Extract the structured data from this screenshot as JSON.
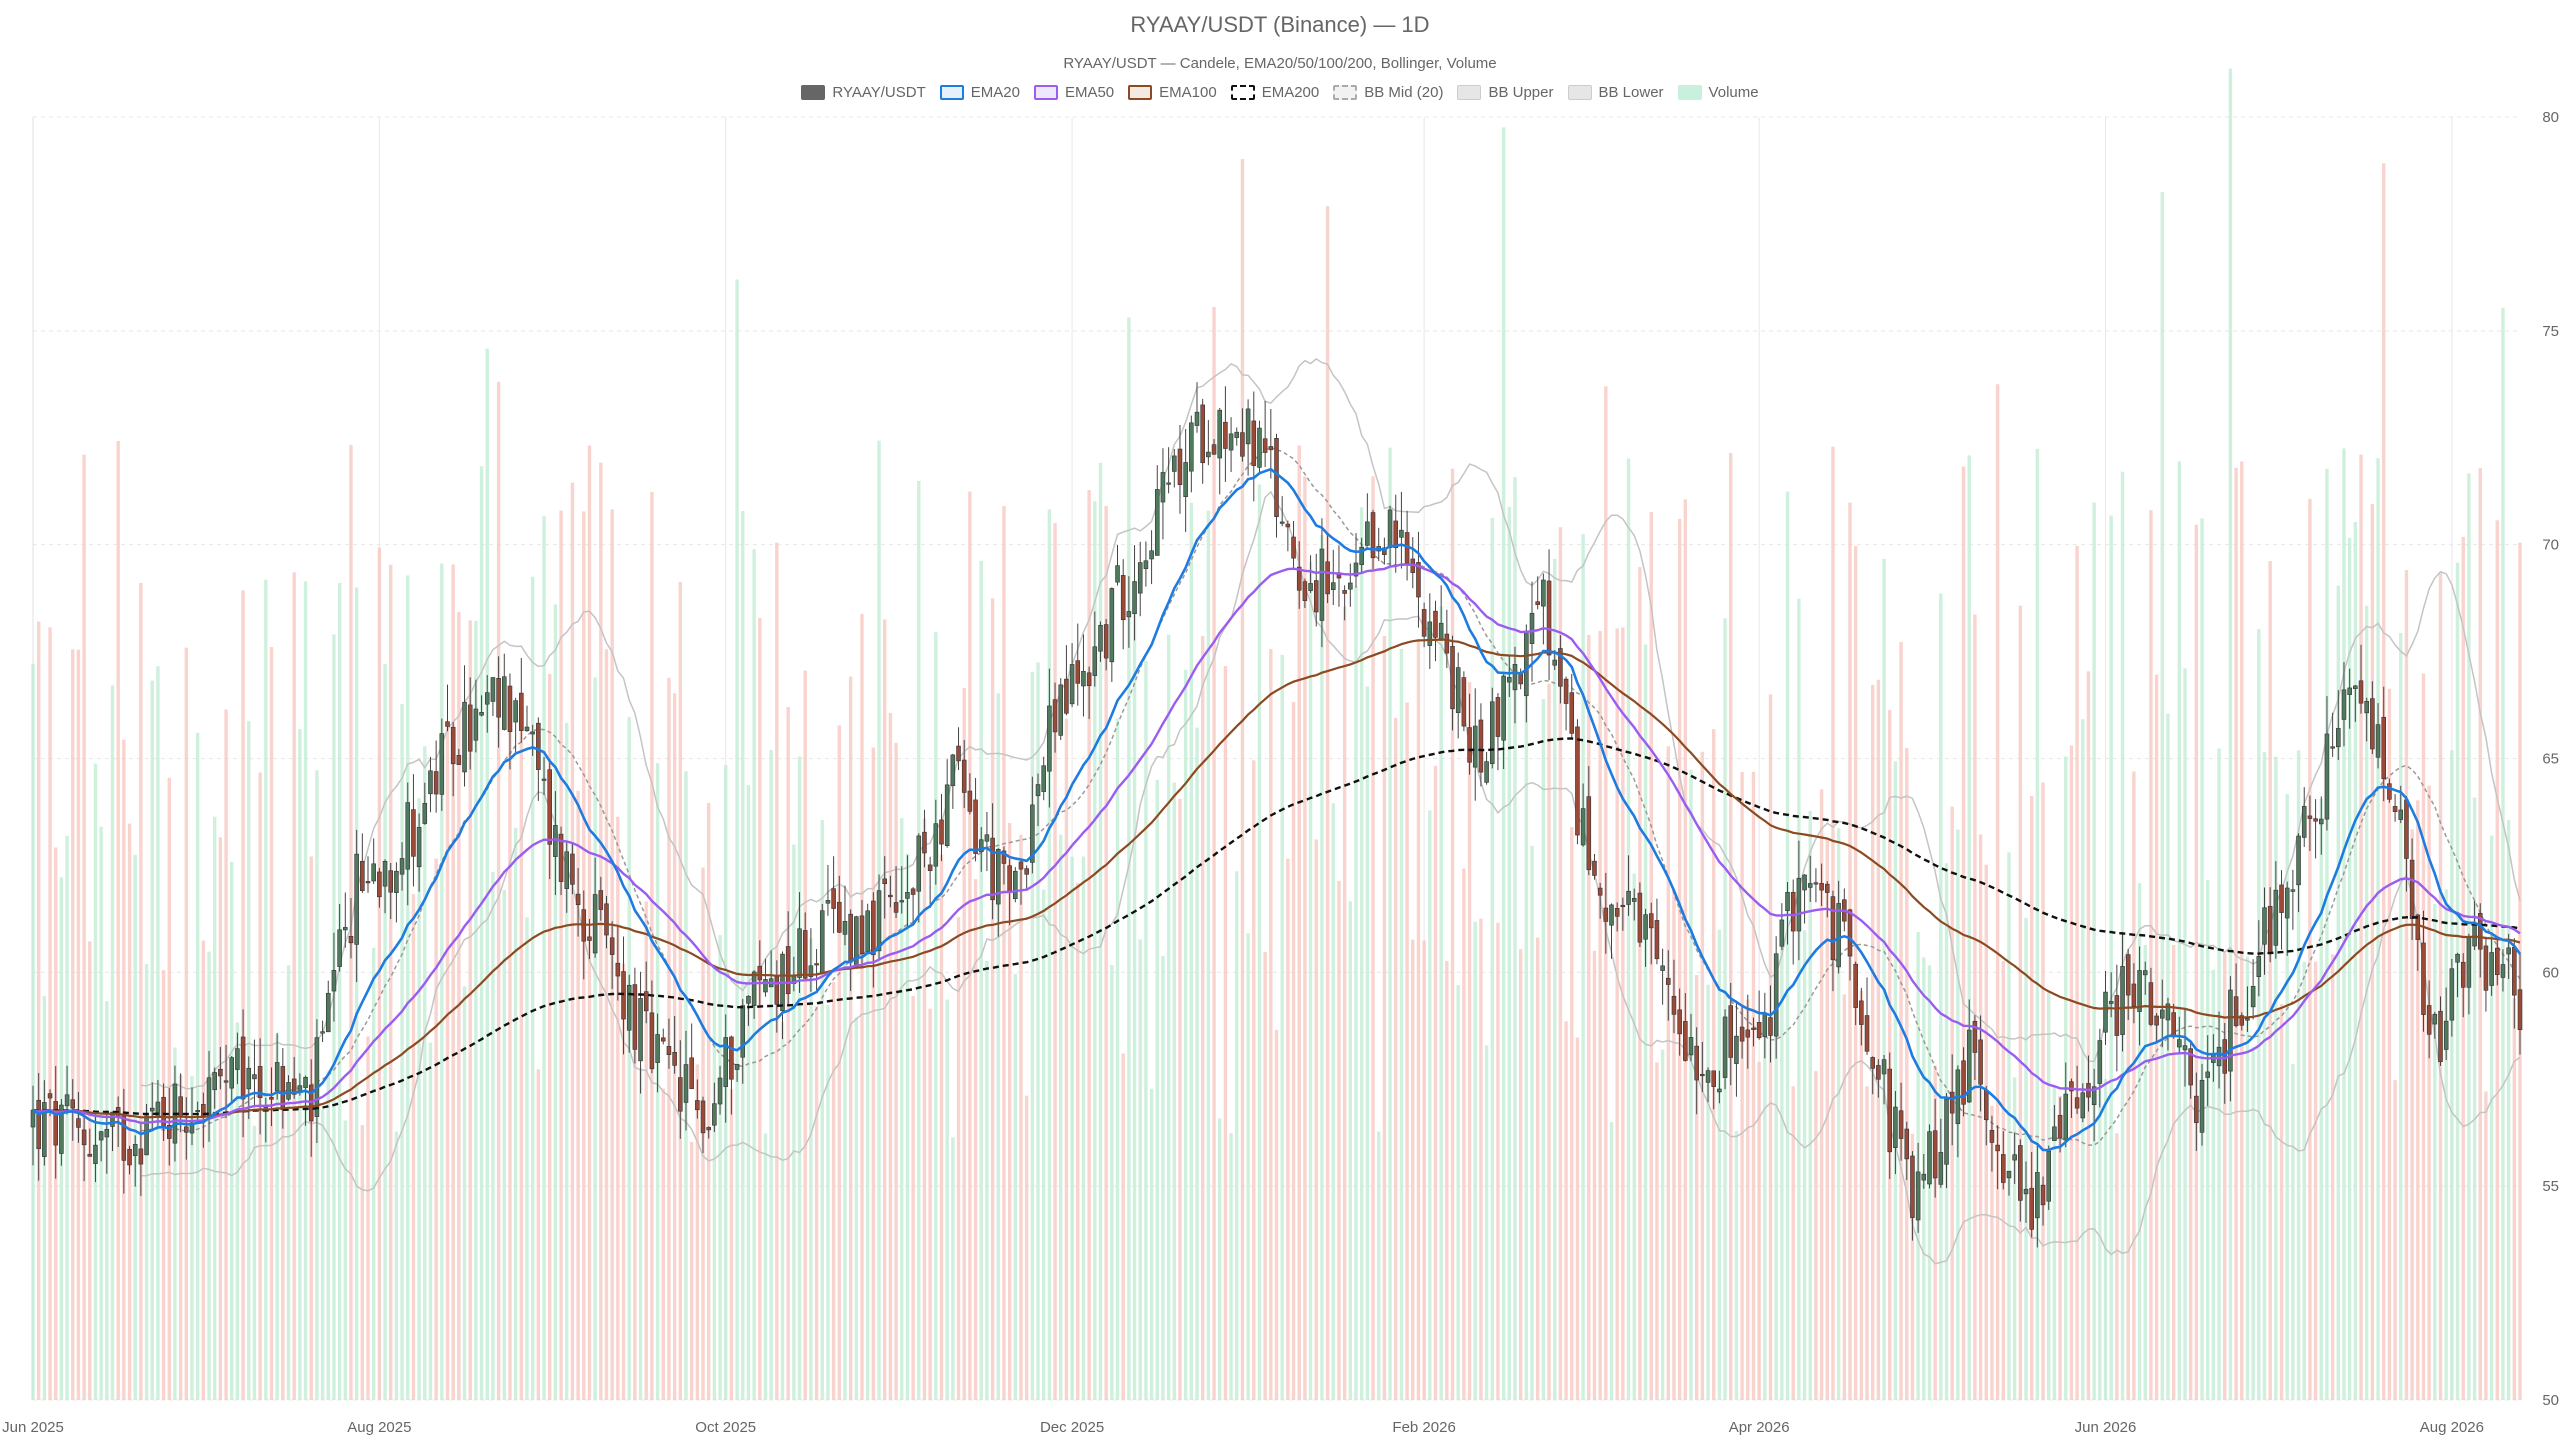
{
  "title": "RYAAY/USDT (Binance) — 1D",
  "subtitle": "RYAAY/USDT — Candele, EMA20/50/100/200, Bollinger, Volume",
  "legend": [
    {
      "label": "RYAAY/USDT",
      "kind": "solid",
      "fill": "#666666",
      "stroke": "#666666"
    },
    {
      "label": "EMA20",
      "kind": "line",
      "fill": "#e6f0fb",
      "stroke": "#1e7be0"
    },
    {
      "label": "EMA50",
      "kind": "line",
      "fill": "#efe7fc",
      "stroke": "#9b5cf0"
    },
    {
      "label": "EMA100",
      "kind": "line",
      "fill": "#f3e9e1",
      "stroke": "#8b4a22"
    },
    {
      "label": "EMA200",
      "kind": "dashed",
      "fill": "#ffffff",
      "stroke": "#111111"
    },
    {
      "label": "BB Mid (20)",
      "kind": "dashed",
      "fill": "#f2f2f2",
      "stroke": "#aaaaaa"
    },
    {
      "label": "BB Upper",
      "kind": "solid",
      "fill": "#e6e6e6",
      "stroke": "#cccccc"
    },
    {
      "label": "BB Lower",
      "kind": "solid",
      "fill": "#e6e6e6",
      "stroke": "#cccccc"
    },
    {
      "label": "Volume",
      "kind": "solid",
      "fill": "#c9f0dc",
      "stroke": "#c9f0dc"
    }
  ],
  "colors": {
    "up": "#4f7a5e",
    "down": "#9c4a38",
    "vol_up": "#bdebd2",
    "vol_down": "#f7c4bc",
    "ema20": "#1e7be0",
    "ema50": "#9b5cf0",
    "ema100": "#8b4a22",
    "ema200": "#111111",
    "bb": "#c4c4c4",
    "bb_mid": "#999999",
    "grid": "#e8e8e8"
  },
  "chart_data": {
    "type": "candlestick",
    "y_axis": {
      "min": 50,
      "max": 80,
      "ticks": [
        "50",
        "55",
        "60",
        "65",
        "70",
        "75",
        "80"
      ],
      "position": "right"
    },
    "x_axis": {
      "start": "2025-06-01",
      "end": "2026-08-13",
      "tick_labels": [
        "Jun 2025",
        "Aug 2025",
        "Oct 2025",
        "Dec 2025",
        "Feb 2026",
        "Apr 2026",
        "Jun 2026",
        "Aug 2026"
      ],
      "tick_dates": [
        "2025-06-01",
        "2025-08-01",
        "2025-10-01",
        "2025-12-01",
        "2026-02-01",
        "2026-04-01",
        "2026-06-01",
        "2026-08-01"
      ]
    },
    "grid": true,
    "legend_position": "top-center",
    "close_anchors": [
      [
        "2025-06-01",
        56.5
      ],
      [
        "2025-06-15",
        56.0
      ],
      [
        "2025-06-25",
        56.8
      ],
      [
        "2025-07-10",
        57.5
      ],
      [
        "2025-07-20",
        57.0
      ],
      [
        "2025-07-28",
        62.0
      ],
      [
        "2025-08-05",
        63.0
      ],
      [
        "2025-08-15",
        65.5
      ],
      [
        "2025-08-25",
        66.5
      ],
      [
        "2025-09-01",
        63.0
      ],
      [
        "2025-09-10",
        60.5
      ],
      [
        "2025-09-18",
        58.0
      ],
      [
        "2025-09-28",
        56.5
      ],
      [
        "2025-10-05",
        59.5
      ],
      [
        "2025-10-20",
        61.0
      ],
      [
        "2025-11-01",
        61.3
      ],
      [
        "2025-11-10",
        64.5
      ],
      [
        "2025-11-20",
        61.5
      ],
      [
        "2025-11-28",
        66.0
      ],
      [
        "2025-12-05",
        67.5
      ],
      [
        "2025-12-15",
        70.5
      ],
      [
        "2025-12-25",
        73.0
      ],
      [
        "2026-01-02",
        72.5
      ],
      [
        "2026-01-10",
        69.5
      ],
      [
        "2026-01-18",
        68.5
      ],
      [
        "2026-01-25",
        70.5
      ],
      [
        "2026-02-02",
        68.5
      ],
      [
        "2026-02-10",
        65.0
      ],
      [
        "2026-02-22",
        68.5
      ],
      [
        "2026-03-02",
        62.5
      ],
      [
        "2026-03-12",
        60.5
      ],
      [
        "2026-03-22",
        58.0
      ],
      [
        "2026-04-02",
        58.5
      ],
      [
        "2026-04-08",
        62.5
      ],
      [
        "2026-04-18",
        60.0
      ],
      [
        "2026-04-28",
        54.5
      ],
      [
        "2026-05-08",
        58.0
      ],
      [
        "2026-05-18",
        54.5
      ],
      [
        "2026-05-25",
        56.5
      ],
      [
        "2026-06-05",
        60.0
      ],
      [
        "2026-06-18",
        57.0
      ],
      [
        "2026-06-28",
        60.5
      ],
      [
        "2026-07-08",
        64.0
      ],
      [
        "2026-07-15",
        66.5
      ],
      [
        "2026-07-22",
        64.0
      ],
      [
        "2026-07-28",
        58.0
      ],
      [
        "2026-08-05",
        60.5
      ],
      [
        "2026-08-13",
        59.5
      ]
    ],
    "volume_axis_max": 100
  }
}
